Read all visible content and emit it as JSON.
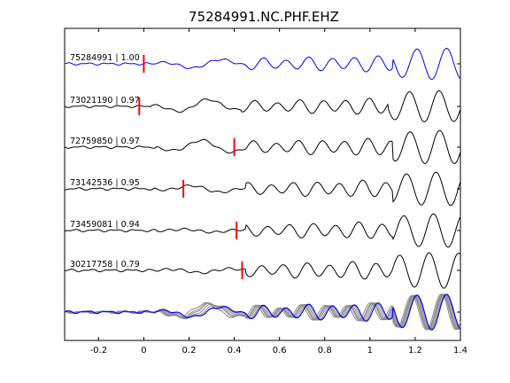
{
  "chart_data": {
    "type": "line",
    "title": "75284991.NC.PHF.EHZ",
    "xlabel": "",
    "ylabel": "",
    "xlim": [
      -0.35,
      1.4
    ],
    "x_ticks": [
      "-0.2",
      "0",
      "0.2",
      "0.4",
      "0.6",
      "0.8",
      "1",
      "1.2",
      "1.4"
    ],
    "x_tick_values": [
      -0.2,
      0,
      0.2,
      0.4,
      0.6,
      0.8,
      1.0,
      1.2,
      1.4
    ],
    "grid": false,
    "colors": {
      "reference": "#0000ff",
      "trace": "#000000",
      "pick": "#ff0000",
      "stack": "#888888"
    },
    "series": [
      {
        "name": "75284991 | 1.00",
        "pick_time": 0.0
      },
      {
        "name": "73021190 | 0.97",
        "pick_time": -0.02
      },
      {
        "name": "72759850 | 0.97",
        "pick_time": 0.4
      },
      {
        "name": "73142536 | 0.95",
        "pick_time": 0.175
      },
      {
        "name": "73459081 | 0.94",
        "pick_time": 0.41
      },
      {
        "name": "30217758 | 0.79",
        "pick_time": 0.435
      }
    ]
  }
}
